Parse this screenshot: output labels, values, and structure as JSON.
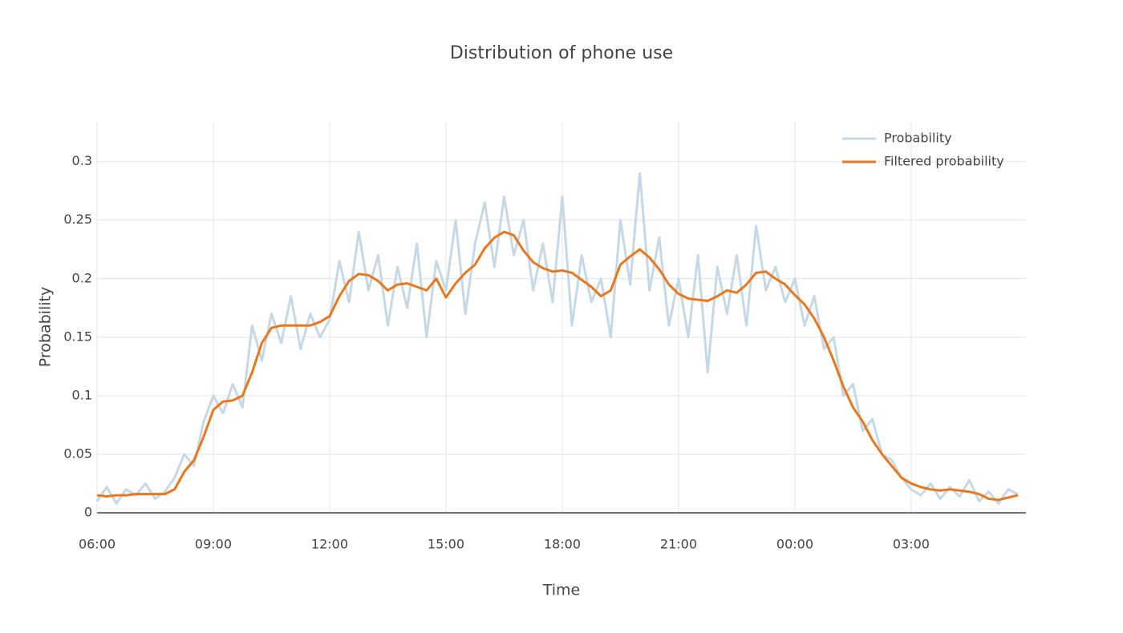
{
  "chart_data": {
    "type": "line",
    "title": "Distribution of phone use",
    "x_label": "Time",
    "y_label": "Probability",
    "x": [
      6,
      6.25,
      6.5,
      6.75,
      7,
      7.25,
      7.5,
      7.75,
      8,
      8.25,
      8.5,
      8.75,
      9,
      9.25,
      9.5,
      9.75,
      10,
      10.25,
      10.5,
      10.75,
      11,
      11.25,
      11.5,
      11.75,
      12,
      12.25,
      12.5,
      12.75,
      13,
      13.25,
      13.5,
      13.75,
      14,
      14.25,
      14.5,
      14.75,
      15,
      15.25,
      15.5,
      15.75,
      16,
      16.25,
      16.5,
      16.75,
      17,
      17.25,
      17.5,
      17.75,
      18,
      18.25,
      18.5,
      18.75,
      19,
      19.25,
      19.5,
      19.75,
      20,
      20.25,
      20.5,
      20.75,
      21,
      21.25,
      21.5,
      21.75,
      22,
      22.25,
      22.5,
      22.75,
      23,
      23.25,
      23.5,
      23.75,
      24,
      24.25,
      24.5,
      24.75,
      25,
      25.25,
      25.5,
      25.75,
      26,
      26.25,
      26.5,
      26.75,
      27,
      27.25,
      27.5,
      27.75,
      28,
      28.25,
      28.5,
      28.75,
      29,
      29.25,
      29.5,
      29.75
    ],
    "series": [
      {
        "name": "Probability",
        "color": "#c6d8e6",
        "values": [
          0.01,
          0.022,
          0.008,
          0.02,
          0.015,
          0.025,
          0.012,
          0.018,
          0.03,
          0.05,
          0.04,
          0.078,
          0.1,
          0.085,
          0.11,
          0.09,
          0.16,
          0.13,
          0.17,
          0.145,
          0.185,
          0.14,
          0.17,
          0.15,
          0.165,
          0.215,
          0.18,
          0.24,
          0.19,
          0.22,
          0.16,
          0.21,
          0.175,
          0.23,
          0.15,
          0.215,
          0.19,
          0.25,
          0.17,
          0.23,
          0.265,
          0.21,
          0.27,
          0.22,
          0.25,
          0.19,
          0.23,
          0.18,
          0.27,
          0.16,
          0.22,
          0.18,
          0.2,
          0.15,
          0.25,
          0.195,
          0.29,
          0.19,
          0.235,
          0.16,
          0.2,
          0.15,
          0.22,
          0.12,
          0.21,
          0.17,
          0.22,
          0.16,
          0.245,
          0.19,
          0.21,
          0.18,
          0.2,
          0.16,
          0.185,
          0.14,
          0.15,
          0.1,
          0.11,
          0.07,
          0.08,
          0.05,
          0.045,
          0.03,
          0.02,
          0.015,
          0.025,
          0.012,
          0.022,
          0.014,
          0.028,
          0.01,
          0.018,
          0.008,
          0.02,
          0.016
        ]
      },
      {
        "name": "Filtered probability",
        "color": "#e8781e",
        "values": [
          0.015,
          0.014,
          0.015,
          0.015,
          0.016,
          0.016,
          0.016,
          0.016,
          0.02,
          0.035,
          0.045,
          0.065,
          0.088,
          0.095,
          0.096,
          0.1,
          0.12,
          0.145,
          0.158,
          0.16,
          0.16,
          0.16,
          0.16,
          0.163,
          0.168,
          0.185,
          0.198,
          0.204,
          0.203,
          0.198,
          0.19,
          0.195,
          0.196,
          0.193,
          0.19,
          0.2,
          0.184,
          0.196,
          0.205,
          0.212,
          0.226,
          0.235,
          0.24,
          0.237,
          0.224,
          0.214,
          0.209,
          0.206,
          0.207,
          0.205,
          0.199,
          0.193,
          0.185,
          0.19,
          0.212,
          0.219,
          0.225,
          0.218,
          0.208,
          0.195,
          0.187,
          0.183,
          0.182,
          0.181,
          0.185,
          0.19,
          0.188,
          0.195,
          0.205,
          0.206,
          0.2,
          0.195,
          0.186,
          0.178,
          0.166,
          0.15,
          0.13,
          0.108,
          0.09,
          0.078,
          0.062,
          0.05,
          0.04,
          0.03,
          0.025,
          0.022,
          0.02,
          0.019,
          0.02,
          0.019,
          0.018,
          0.016,
          0.012,
          0.011,
          0.013,
          0.015
        ]
      }
    ],
    "xlim": [
      6,
      29.96
    ],
    "ylim": [
      0,
      0.334
    ],
    "xticks": [
      {
        "value": 6,
        "label": "06:00"
      },
      {
        "value": 9,
        "label": "09:00"
      },
      {
        "value": 12,
        "label": "12:00"
      },
      {
        "value": 15,
        "label": "15:00"
      },
      {
        "value": 18,
        "label": "18:00"
      },
      {
        "value": 21,
        "label": "21:00"
      },
      {
        "value": 24,
        "label": "00:00"
      },
      {
        "value": 27,
        "label": "03:00"
      }
    ],
    "yticks": [
      0,
      0.05,
      0.1,
      0.15,
      0.2,
      0.25,
      0.3
    ],
    "grid": true,
    "legend": "top-right"
  }
}
